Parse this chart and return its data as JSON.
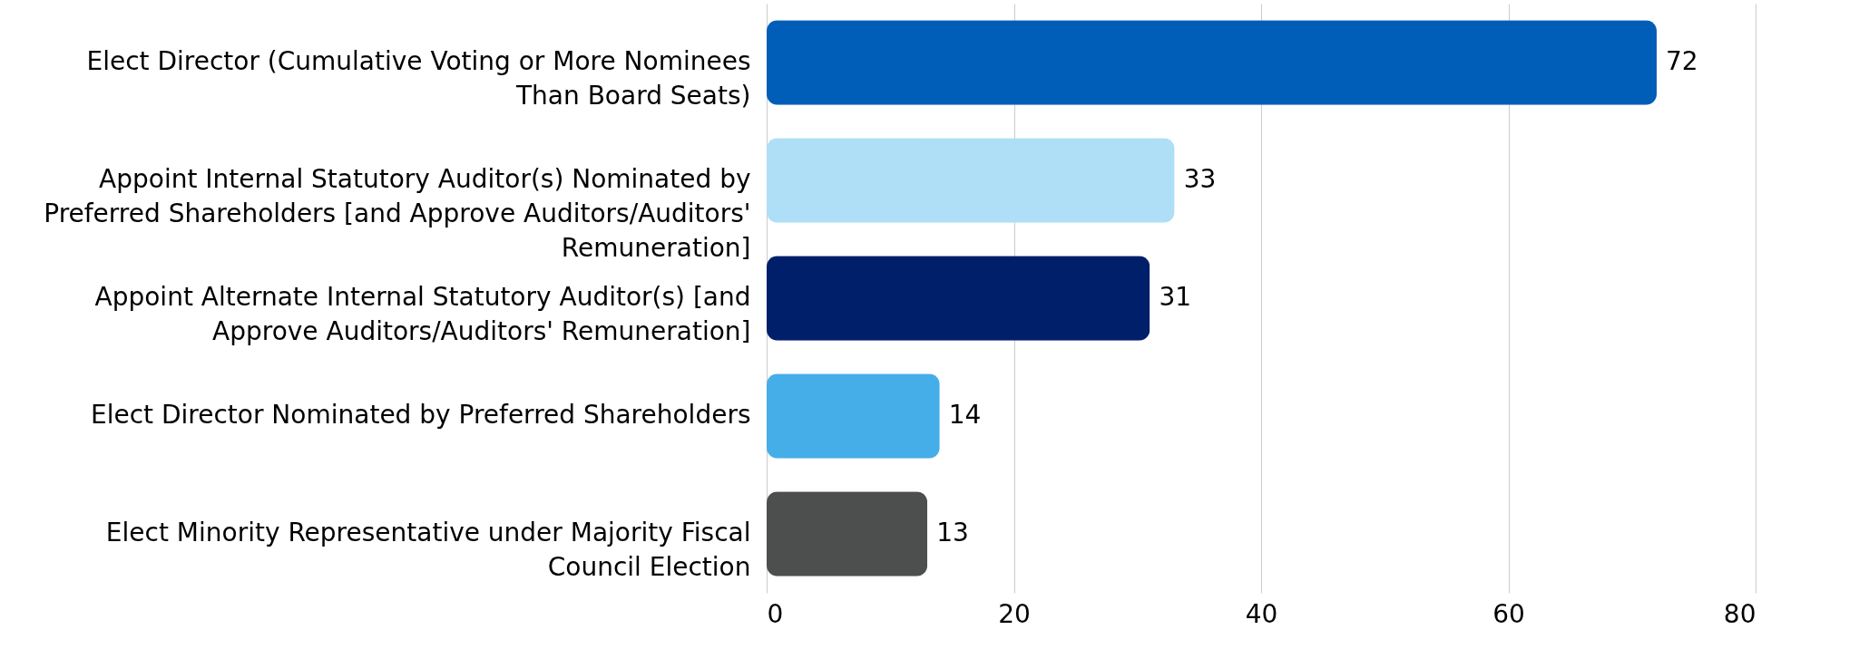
{
  "chart_data": {
    "type": "bar",
    "orientation": "horizontal",
    "categories": [
      "Elect Director (Cumulative Voting or More Nominees Than Board Seats)",
      "Appoint Internal Statutory Auditor(s) Nominated by Preferred Shareholders [and Approve Auditors/Auditors' Remuneration]",
      "Appoint Alternate Internal Statutory Auditor(s) [and Approve Auditors/Auditors' Remuneration]",
      "Elect Director Nominated by Preferred Shareholders",
      "Elect Minority Representative under Majority Fiscal Council Election"
    ],
    "values": [
      72,
      33,
      31,
      14,
      13
    ],
    "colors": [
      "#005eb8",
      "#aedff7",
      "#001f6b",
      "#45aee8",
      "#4d4f4f"
    ],
    "xlim": [
      0,
      80
    ],
    "xticks": [
      0,
      20,
      40,
      60,
      80
    ],
    "grid": "x",
    "data_labels": true
  }
}
